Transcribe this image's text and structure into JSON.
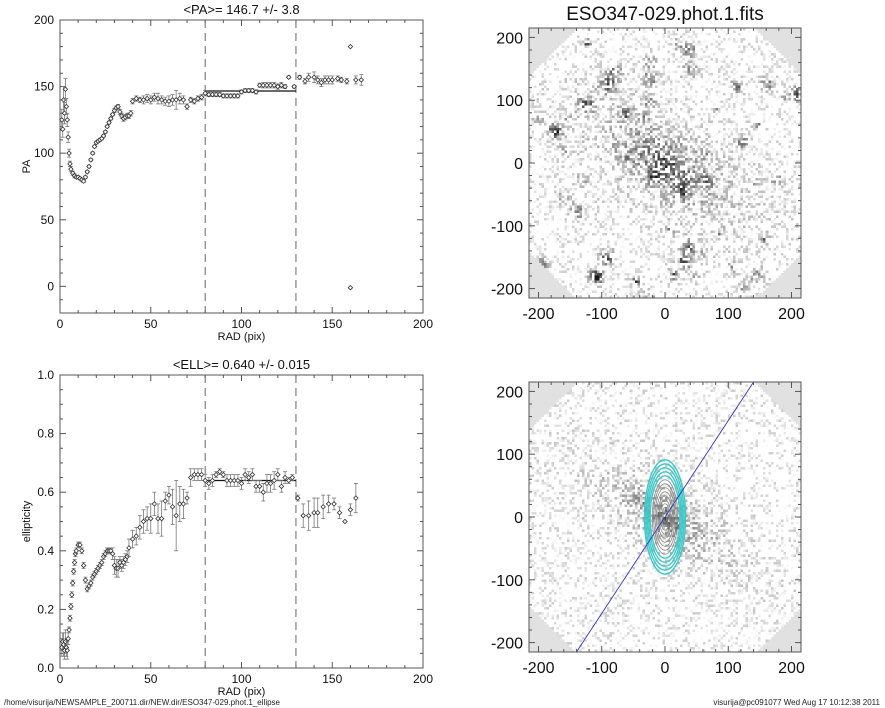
{
  "footer": {
    "path": "/home/visurija/NEWSAMPLE_200711.dir/NEW.dir/ESO347-029.phot.1_ellipse",
    "stamp": "visurija@pc091077  Wed Aug 17 10:12:38 2011"
  },
  "chart_data": [
    {
      "type": "scatter",
      "title": "<PA>= 146.7 +/-   3.8",
      "xlabel": "RAD (pix)",
      "ylabel": "PA",
      "xlim": [
        0,
        200
      ],
      "ylim": [
        -20,
        200
      ],
      "xticks": [
        0,
        50,
        100,
        150,
        200
      ],
      "yticks": [
        0,
        50,
        100,
        150,
        200
      ],
      "mean": 146.7,
      "mean_err": 3.8,
      "fit_range": [
        80,
        130
      ],
      "vlines": [
        80,
        130
      ],
      "points": [
        [
          1,
          125,
          8
        ],
        [
          1.5,
          118,
          6
        ],
        [
          2,
          140,
          10
        ],
        [
          2.5,
          130,
          8
        ],
        [
          3,
          148,
          8
        ],
        [
          3.5,
          135,
          6
        ],
        [
          4,
          125,
          5
        ],
        [
          4.5,
          112,
          4
        ],
        [
          5,
          100,
          3
        ],
        [
          5.5,
          92,
          2
        ],
        [
          6,
          88,
          2
        ],
        [
          7,
          85,
          1.5
        ],
        [
          8,
          83,
          1.5
        ],
        [
          9,
          82,
          1
        ],
        [
          10,
          82,
          1
        ],
        [
          11,
          81,
          1
        ],
        [
          12,
          80,
          1
        ],
        [
          13,
          79,
          1
        ],
        [
          14,
          82,
          1
        ],
        [
          15,
          86,
          1
        ],
        [
          16,
          90,
          1
        ],
        [
          17,
          95,
          1
        ],
        [
          18,
          100,
          1
        ],
        [
          19,
          105,
          1
        ],
        [
          20,
          108,
          1
        ],
        [
          21,
          109,
          1
        ],
        [
          22,
          110,
          1
        ],
        [
          23,
          111,
          1
        ],
        [
          24,
          113,
          1
        ],
        [
          25,
          116,
          1
        ],
        [
          26,
          120,
          1
        ],
        [
          27,
          123,
          1
        ],
        [
          28,
          126,
          1
        ],
        [
          29,
          129,
          1
        ],
        [
          30,
          132,
          1.5
        ],
        [
          31,
          134,
          1.5
        ],
        [
          32,
          135,
          1.5
        ],
        [
          33,
          131,
          2
        ],
        [
          34,
          128,
          2
        ],
        [
          35,
          126,
          2
        ],
        [
          36,
          127,
          2
        ],
        [
          37,
          128,
          2
        ],
        [
          38,
          128,
          2
        ],
        [
          39,
          130,
          2
        ],
        [
          40,
          139,
          2
        ],
        [
          42,
          141,
          2
        ],
        [
          44,
          140,
          2
        ],
        [
          46,
          140,
          3
        ],
        [
          48,
          141,
          3
        ],
        [
          50,
          140,
          3
        ],
        [
          52,
          142,
          3
        ],
        [
          54,
          141,
          4
        ],
        [
          56,
          140,
          3
        ],
        [
          58,
          139,
          3
        ],
        [
          60,
          139,
          4
        ],
        [
          62,
          140,
          4
        ],
        [
          64,
          140,
          7
        ],
        [
          66,
          141,
          4
        ],
        [
          68,
          140,
          3
        ],
        [
          70,
          135,
          2
        ],
        [
          72,
          140,
          2
        ],
        [
          74,
          139,
          2
        ],
        [
          76,
          141,
          2
        ],
        [
          78,
          142,
          2
        ],
        [
          80,
          145,
          2
        ],
        [
          82,
          144,
          1.5
        ],
        [
          84,
          144,
          1.5
        ],
        [
          86,
          144,
          1.5
        ],
        [
          88,
          144,
          1.5
        ],
        [
          90,
          143,
          1.5
        ],
        [
          92,
          143,
          1.5
        ],
        [
          94,
          143,
          1.5
        ],
        [
          96,
          143,
          1.5
        ],
        [
          98,
          143,
          1.5
        ],
        [
          100,
          146,
          1.5
        ],
        [
          102,
          147,
          1.5
        ],
        [
          104,
          147,
          1.5
        ],
        [
          106,
          147,
          1.5
        ],
        [
          108,
          146,
          1.5
        ],
        [
          110,
          151,
          1.5
        ],
        [
          112,
          151,
          2
        ],
        [
          114,
          151,
          2
        ],
        [
          116,
          151,
          2
        ],
        [
          118,
          151,
          2
        ],
        [
          120,
          150,
          2
        ],
        [
          122,
          151,
          2
        ],
        [
          124,
          150,
          1.5
        ],
        [
          126,
          157,
          1
        ],
        [
          129,
          150,
          1
        ],
        [
          132,
          157,
          1.5
        ],
        [
          135,
          154,
          2
        ],
        [
          137,
          157,
          3
        ],
        [
          140,
          157,
          4
        ],
        [
          142,
          155,
          3
        ],
        [
          144,
          153,
          3
        ],
        [
          146,
          155,
          3
        ],
        [
          148,
          155,
          3
        ],
        [
          150,
          155,
          3
        ],
        [
          153,
          156,
          2
        ],
        [
          155,
          155,
          2
        ],
        [
          158,
          154,
          2
        ],
        [
          160,
          180,
          0
        ],
        [
          160,
          -1,
          0
        ],
        [
          163,
          155,
          3
        ],
        [
          166,
          155,
          4
        ]
      ]
    },
    {
      "type": "scatter",
      "title": "<ELL>= 0.640 +/-  0.015",
      "xlabel": "RAD (pix)",
      "ylabel": "ellipticity",
      "xlim": [
        0,
        200
      ],
      "ylim": [
        0,
        1
      ],
      "xticks": [
        0,
        50,
        100,
        150,
        200
      ],
      "yticks": [
        "0.0",
        "0.2",
        "0.4",
        "0.6",
        "0.8",
        "1.0"
      ],
      "mean": 0.64,
      "mean_err": 0.015,
      "fit_range": [
        80,
        130
      ],
      "vlines": [
        80,
        130
      ],
      "points": [
        [
          1,
          0.07,
          0.03
        ],
        [
          1.5,
          0.09,
          0.03
        ],
        [
          2,
          0.08,
          0.04
        ],
        [
          2.5,
          0.06,
          0.03
        ],
        [
          3,
          0.09,
          0.04
        ],
        [
          3.5,
          0.07,
          0.03
        ],
        [
          4,
          0.06,
          0.03
        ],
        [
          4.5,
          0.1,
          0.02
        ],
        [
          5,
          0.13,
          0.01
        ],
        [
          5.5,
          0.17,
          0.01
        ],
        [
          6,
          0.21,
          0.01
        ],
        [
          6.5,
          0.25,
          0.01
        ],
        [
          7,
          0.29,
          0.01
        ],
        [
          7.5,
          0.33,
          0.01
        ],
        [
          8,
          0.36,
          0.01
        ],
        [
          8.5,
          0.39,
          0.01
        ],
        [
          9,
          0.4,
          0.01
        ],
        [
          10,
          0.42,
          0.01
        ],
        [
          11,
          0.42,
          0.01
        ],
        [
          12,
          0.4,
          0.01
        ],
        [
          13,
          0.35,
          0.01
        ],
        [
          14,
          0.3,
          0.01
        ],
        [
          15,
          0.27,
          0.01
        ],
        [
          16,
          0.28,
          0.01
        ],
        [
          17,
          0.29,
          0.01
        ],
        [
          18,
          0.31,
          0.01
        ],
        [
          19,
          0.32,
          0.01
        ],
        [
          20,
          0.33,
          0.01
        ],
        [
          21,
          0.34,
          0.01
        ],
        [
          22,
          0.35,
          0.01
        ],
        [
          23,
          0.36,
          0.01
        ],
        [
          24,
          0.38,
          0.01
        ],
        [
          25,
          0.39,
          0.01
        ],
        [
          26,
          0.4,
          0.01
        ],
        [
          27,
          0.4,
          0.01
        ],
        [
          28,
          0.4,
          0.01
        ],
        [
          29,
          0.39,
          0.02
        ],
        [
          30,
          0.35,
          0.03
        ],
        [
          31,
          0.34,
          0.03
        ],
        [
          32,
          0.34,
          0.03
        ],
        [
          33,
          0.36,
          0.02
        ],
        [
          34,
          0.35,
          0.02
        ],
        [
          35,
          0.36,
          0.02
        ],
        [
          36,
          0.37,
          0.02
        ],
        [
          37,
          0.38,
          0.02
        ],
        [
          38,
          0.41,
          0.03
        ],
        [
          40,
          0.44,
          0.03
        ],
        [
          42,
          0.45,
          0.03
        ],
        [
          44,
          0.48,
          0.04
        ],
        [
          46,
          0.5,
          0.04
        ],
        [
          48,
          0.51,
          0.04
        ],
        [
          50,
          0.51,
          0.05
        ],
        [
          52,
          0.56,
          0.04
        ],
        [
          54,
          0.51,
          0.05
        ],
        [
          56,
          0.51,
          0.06
        ],
        [
          58,
          0.57,
          0.03
        ],
        [
          60,
          0.59,
          0.03
        ],
        [
          62,
          0.55,
          0.06
        ],
        [
          64,
          0.52,
          0.12
        ],
        [
          66,
          0.56,
          0.06
        ],
        [
          68,
          0.56,
          0.05
        ],
        [
          70,
          0.58,
          0.02
        ],
        [
          72,
          0.65,
          0.03
        ],
        [
          74,
          0.66,
          0.02
        ],
        [
          76,
          0.66,
          0.02
        ],
        [
          78,
          0.66,
          0.02
        ],
        [
          80,
          0.64,
          0.02
        ],
        [
          82,
          0.63,
          0.02
        ],
        [
          84,
          0.64,
          0.02
        ],
        [
          86,
          0.66,
          0.01
        ],
        [
          88,
          0.67,
          0.01
        ],
        [
          90,
          0.66,
          0.01
        ],
        [
          92,
          0.64,
          0.02
        ],
        [
          94,
          0.64,
          0.02
        ],
        [
          96,
          0.64,
          0.02
        ],
        [
          98,
          0.64,
          0.02
        ],
        [
          100,
          0.63,
          0.02
        ],
        [
          102,
          0.66,
          0.02
        ],
        [
          104,
          0.65,
          0.02
        ],
        [
          106,
          0.66,
          0.02
        ],
        [
          108,
          0.62,
          0.02
        ],
        [
          110,
          0.62,
          0.02
        ],
        [
          112,
          0.6,
          0.03
        ],
        [
          114,
          0.63,
          0.03
        ],
        [
          116,
          0.63,
          0.03
        ],
        [
          118,
          0.64,
          0.03
        ],
        [
          120,
          0.66,
          0.02
        ],
        [
          122,
          0.62,
          0.02
        ],
        [
          124,
          0.65,
          0.02
        ],
        [
          126,
          0.64,
          0.01
        ],
        [
          128,
          0.65,
          0.01
        ],
        [
          131,
          0.58,
          0.01
        ],
        [
          134,
          0.52,
          0.04
        ],
        [
          137,
          0.52,
          0.05
        ],
        [
          140,
          0.53,
          0.05
        ],
        [
          142,
          0.53,
          0.05
        ],
        [
          145,
          0.55,
          0.04
        ],
        [
          148,
          0.56,
          0.03
        ],
        [
          151,
          0.56,
          0.02
        ],
        [
          154,
          0.53,
          0.02
        ],
        [
          157,
          0.5,
          0
        ],
        [
          160,
          0.54,
          0.02
        ],
        [
          163,
          0.58,
          0.05
        ]
      ]
    },
    {
      "type": "heatmap",
      "title": "ESO347-029.phot.1.fits",
      "xlim": [
        -215,
        215
      ],
      "ylim": [
        -215,
        215
      ],
      "xticks": [
        -200,
        -100,
        0,
        100,
        200
      ],
      "yticks": [
        -200,
        -100,
        0,
        100,
        200
      ]
    },
    {
      "type": "heatmap",
      "title": "",
      "xlim": [
        -215,
        215
      ],
      "ylim": [
        -215,
        215
      ],
      "xticks": [
        -200,
        -100,
        0,
        100,
        200
      ],
      "yticks": [
        -200,
        -100,
        0,
        100,
        200
      ],
      "major_axis_pa": 146.7,
      "colors": {
        "axis_line": "#3333bb",
        "outer_isophotes": "#40c8c8",
        "inner_isophotes": "#888888"
      }
    }
  ]
}
